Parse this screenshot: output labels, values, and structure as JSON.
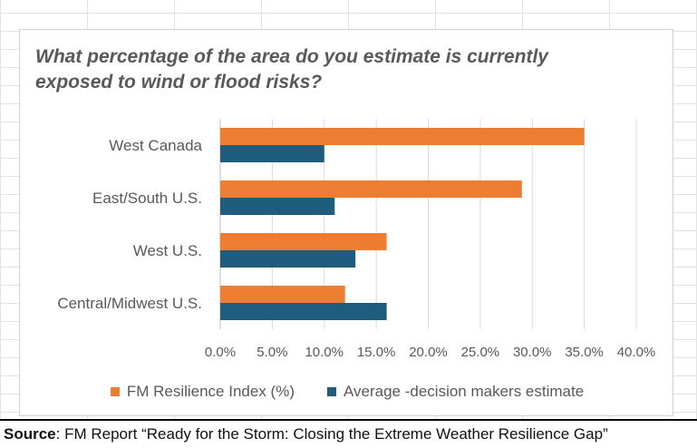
{
  "chart_data": {
    "type": "bar",
    "orientation": "horizontal",
    "title": "What percentage of the area do you estimate is currently exposed to wind or flood risks?",
    "categories": [
      "West Canada",
      "East/South U.S.",
      "West U.S.",
      "Central/Midwest U.S."
    ],
    "series": [
      {
        "name": "FM Resilience Index (%)",
        "color": "#ED7D31",
        "values": [
          35.0,
          29.0,
          16.0,
          12.0
        ]
      },
      {
        "name": "Average -decision makers estimate",
        "color": "#1F5C7D",
        "values": [
          10.0,
          11.0,
          13.0,
          16.0
        ]
      }
    ],
    "xlim": [
      0,
      40
    ],
    "xticks": [
      "0.0%",
      "5.0%",
      "10.0%",
      "15.0%",
      "20.0%",
      "25.0%",
      "30.0%",
      "35.0%",
      "40.0%"
    ],
    "gridlines": true,
    "legend_position": "bottom",
    "xlabel": "",
    "ylabel": ""
  },
  "source": {
    "label": "Source",
    "text": ": FM Report “Ready for the Storm: Closing the Extreme Weather Resilience Gap”"
  }
}
